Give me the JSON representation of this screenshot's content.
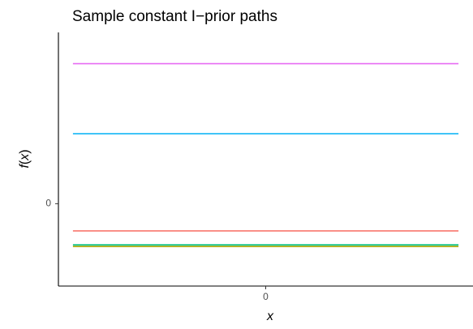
{
  "chart_data": {
    "type": "line",
    "title": "Sample constant I−prior paths",
    "xlabel": "x",
    "ylabel": {
      "func": "f",
      "arg": "x",
      "open": "(",
      "close": ")"
    },
    "x_ticks": [
      {
        "value": 0,
        "label": "0"
      }
    ],
    "y_ticks": [
      {
        "value": 0,
        "label": "0"
      }
    ],
    "xlim": [
      -1,
      1
    ],
    "ylim": [
      -1.0,
      2.08
    ],
    "grid": false,
    "legend": "none",
    "series": [
      {
        "color": "#E76BF3",
        "x": [
          -0.93,
          0.93
        ],
        "y": [
          1.7,
          1.7
        ]
      },
      {
        "color": "#00B0F6",
        "x": [
          -0.93,
          0.93
        ],
        "y": [
          0.85,
          0.85
        ]
      },
      {
        "color": "#F8766D",
        "x": [
          -0.93,
          0.93
        ],
        "y": [
          -0.33,
          -0.33
        ]
      },
      {
        "color": "#00BF7D",
        "x": [
          -0.93,
          0.93
        ],
        "y": [
          -0.5,
          -0.5
        ]
      },
      {
        "color": "#A3A500",
        "x": [
          -0.93,
          0.93
        ],
        "y": [
          -0.52,
          -0.52
        ]
      }
    ]
  }
}
